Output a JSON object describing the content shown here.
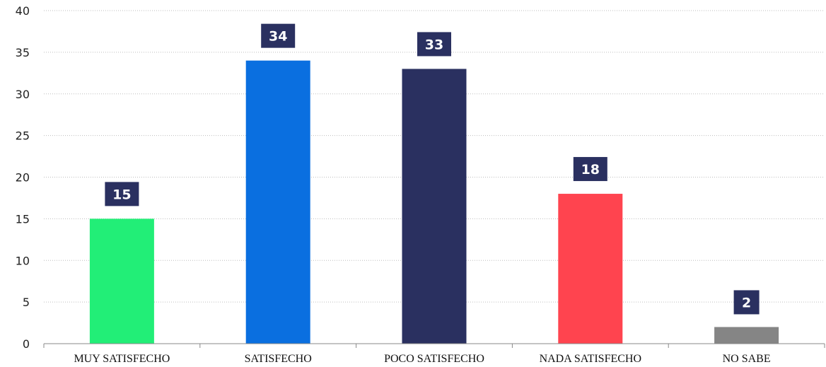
{
  "chart_data": {
    "type": "bar",
    "categories": [
      "MUY SATISFECHO",
      "SATISFECHO",
      "POCO SATISFECHO",
      "NADA SATISFECHO",
      "NO SABE"
    ],
    "values": [
      15,
      34,
      33,
      18,
      2
    ],
    "colors": [
      "#22ee77",
      "#0a6fe0",
      "#2a3060",
      "#ff444f",
      "#858585"
    ],
    "label_box_color": "#2a3060",
    "ylim": [
      0,
      40
    ],
    "yticks": [
      0,
      5,
      10,
      15,
      20,
      25,
      30,
      35,
      40
    ],
    "grid": true,
    "title": "",
    "xlabel": "",
    "ylabel": ""
  }
}
